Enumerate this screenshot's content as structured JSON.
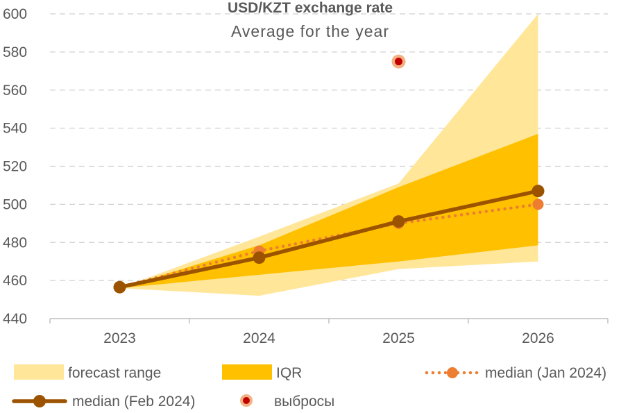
{
  "chart_data": {
    "type": "area",
    "title": "USD/KZT exchange rate",
    "subtitle": "Average for the year",
    "categories": [
      "2023",
      "2024",
      "2025",
      "2026"
    ],
    "ylim": [
      440,
      600
    ],
    "yticks": [
      440,
      460,
      480,
      500,
      520,
      540,
      560,
      580,
      600
    ],
    "grid": true,
    "legend_position": "bottom",
    "series": [
      {
        "name": "forecast range",
        "type": "band",
        "color": "#ffe699",
        "low": [
          456,
          452,
          466,
          470
        ],
        "high": [
          456,
          483,
          511,
          600
        ]
      },
      {
        "name": "IQR",
        "type": "band",
        "color": "#ffc000",
        "low": [
          456,
          463,
          470,
          478.5
        ],
        "high": [
          456,
          478.5,
          509,
          537
        ]
      },
      {
        "name": "median (Jan 2024)",
        "type": "line",
        "style": "dotted",
        "color": "#ed7d31",
        "values": [
          456.5,
          475.5,
          490,
          500
        ]
      },
      {
        "name": "median (Feb 2024)",
        "type": "line",
        "style": "solid",
        "color": "#9c5300",
        "values": [
          456.5,
          472,
          491,
          507
        ]
      },
      {
        "name": "выбросы",
        "type": "scatter",
        "color": "#c00000",
        "points": [
          {
            "x": "2025",
            "y": 575
          }
        ]
      }
    ]
  }
}
